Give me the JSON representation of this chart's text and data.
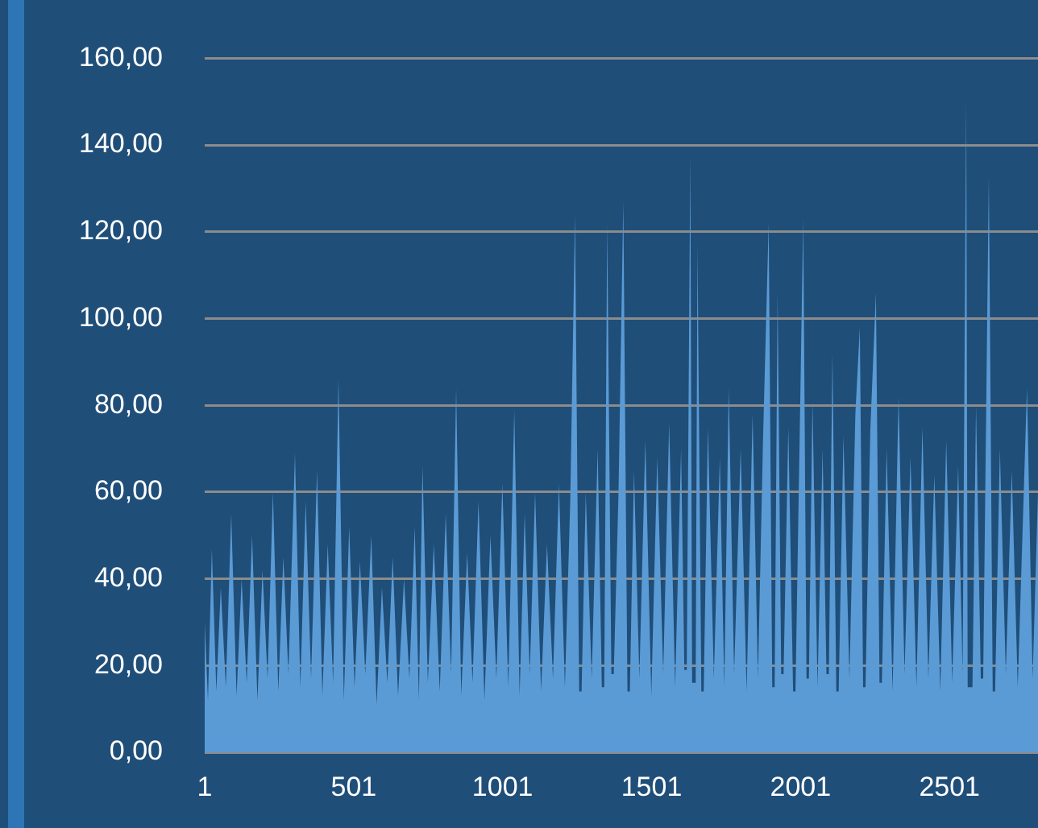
{
  "chart_data": {
    "type": "area",
    "color": "#5b9bd5",
    "grid": "y",
    "xlim": [
      1,
      2798
    ],
    "xticks": [
      1,
      501,
      1001,
      1501,
      2001,
      2501
    ],
    "ylim": [
      0,
      160
    ],
    "yticks": [
      {
        "value": 0,
        "label": "0,00"
      },
      {
        "value": 20,
        "label": "20,00"
      },
      {
        "value": 40,
        "label": "40,00"
      },
      {
        "value": 60,
        "label": "60,00"
      },
      {
        "value": 80,
        "label": "80,00"
      },
      {
        "value": 100,
        "label": "100,00"
      },
      {
        "value": 120,
        "label": "120,00"
      },
      {
        "value": 140,
        "label": "140,00"
      },
      {
        "value": 160,
        "label": "160,00"
      }
    ],
    "x": [
      1,
      12,
      25,
      40,
      55,
      72,
      90,
      108,
      125,
      142,
      160,
      178,
      195,
      212,
      230,
      248,
      265,
      282,
      304,
      322,
      340,
      358,
      378,
      396,
      414,
      432,
      450,
      468,
      486,
      504,
      522,
      540,
      560,
      578,
      596,
      614,
      632,
      650,
      670,
      688,
      706,
      720,
      732,
      750,
      770,
      790,
      810,
      828,
      845,
      862,
      882,
      900,
      920,
      940,
      960,
      980,
      1000,
      1020,
      1040,
      1058,
      1075,
      1092,
      1110,
      1130,
      1150,
      1170,
      1190,
      1210,
      1228,
      1244,
      1258,
      1266,
      1280,
      1300,
      1320,
      1334,
      1342,
      1352,
      1366,
      1374,
      1390,
      1406,
      1420,
      1428,
      1442,
      1460,
      1480,
      1500,
      1520,
      1540,
      1560,
      1580,
      1600,
      1611,
      1619,
      1631,
      1637,
      1649,
      1655,
      1668,
      1676,
      1690,
      1710,
      1730,
      1745,
      1760,
      1778,
      1800,
      1820,
      1840,
      1858,
      1875,
      1894,
      1906,
      1914,
      1924,
      1936,
      1944,
      1960,
      1976,
      1984,
      2010,
      2021,
      2029,
      2041,
      2058,
      2075,
      2088,
      2096,
      2108,
      2121,
      2129,
      2145,
      2165,
      2185,
      2200,
      2211,
      2219,
      2235,
      2254,
      2266,
      2274,
      2290,
      2310,
      2330,
      2350,
      2370,
      2390,
      2410,
      2430,
      2450,
      2470,
      2490,
      2510,
      2530,
      2545,
      2557,
      2562,
      2578,
      2590,
      2606,
      2614,
      2633,
      2646,
      2654,
      2670,
      2690,
      2710,
      2730,
      2761,
      2780,
      2798
    ],
    "values": [
      30,
      12,
      47,
      14,
      38,
      15,
      55,
      13,
      40,
      16,
      50,
      12,
      42,
      17,
      60,
      14,
      45,
      18,
      69,
      15,
      58,
      17,
      65,
      13,
      48,
      16,
      86,
      12,
      52,
      15,
      44,
      18,
      50,
      11,
      38,
      16,
      45,
      13,
      40,
      17,
      52,
      12,
      66,
      16,
      48,
      14,
      55,
      18,
      84,
      13,
      46,
      16,
      58,
      12,
      50,
      17,
      62,
      15,
      79,
      13,
      55,
      18,
      60,
      14,
      48,
      17,
      62,
      15,
      58,
      124,
      14,
      14,
      60,
      17,
      70,
      15,
      15,
      122,
      18,
      18,
      60,
      127,
      14,
      14,
      65,
      17,
      72,
      13,
      68,
      18,
      76,
      15,
      70,
      19,
      19,
      138,
      16,
      16,
      117,
      14,
      14,
      75,
      17,
      68,
      15,
      84,
      18,
      70,
      14,
      78,
      17,
      72,
      122,
      15,
      15,
      106,
      18,
      18,
      75,
      14,
      14,
      123,
      17,
      17,
      81,
      15,
      70,
      18,
      18,
      92,
      14,
      14,
      73,
      17,
      78,
      98,
      15,
      15,
      74,
      106,
      16,
      16,
      70,
      14,
      82,
      18,
      68,
      15,
      75,
      17,
      64,
      14,
      72,
      16,
      66,
      18,
      151,
      15,
      15,
      80,
      17,
      17,
      133,
      14,
      14,
      70,
      18,
      65,
      15,
      84,
      17,
      60
    ]
  }
}
